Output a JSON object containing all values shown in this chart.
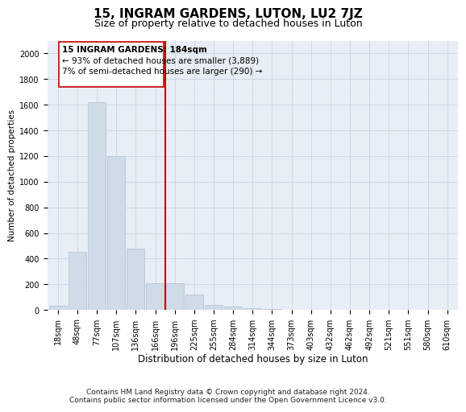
{
  "title": "15, INGRAM GARDENS, LUTON, LU2 7JZ",
  "subtitle": "Size of property relative to detached houses in Luton",
  "xlabel": "Distribution of detached houses by size in Luton",
  "ylabel": "Number of detached properties",
  "bar_color": "#cfdce8",
  "bar_edge_color": "#aabfd0",
  "categories": [
    "18sqm",
    "48sqm",
    "77sqm",
    "107sqm",
    "136sqm",
    "166sqm",
    "196sqm",
    "225sqm",
    "255sqm",
    "284sqm",
    "314sqm",
    "344sqm",
    "373sqm",
    "403sqm",
    "432sqm",
    "462sqm",
    "492sqm",
    "521sqm",
    "551sqm",
    "580sqm",
    "610sqm"
  ],
  "values": [
    30,
    450,
    1620,
    1200,
    480,
    210,
    210,
    120,
    40,
    25,
    15,
    5,
    0,
    0,
    0,
    0,
    0,
    0,
    0,
    0,
    0
  ],
  "vline_color": "#cc0000",
  "annotation_title": "15 INGRAM GARDENS: 184sqm",
  "annotation_line1": "← 93% of detached houses are smaller (3,889)",
  "annotation_line2": "7% of semi-detached houses are larger (290) →",
  "annotation_box_color": "#ffffff",
  "annotation_box_edge": "#cc0000",
  "ylim": [
    0,
    2100
  ],
  "yticks": [
    0,
    200,
    400,
    600,
    800,
    1000,
    1200,
    1400,
    1600,
    1800,
    2000
  ],
  "footnote1": "Contains HM Land Registry data © Crown copyright and database right 2024.",
  "footnote2": "Contains public sector information licensed under the Open Government Licence v3.0.",
  "bg_color": "#ffffff",
  "plot_bg_color": "#e8eef5",
  "grid_color": "#c8d4e0",
  "title_fontsize": 11,
  "subtitle_fontsize": 9,
  "xlabel_fontsize": 8.5,
  "ylabel_fontsize": 7.5,
  "tick_fontsize": 7,
  "annotation_fontsize": 7.5,
  "footnote_fontsize": 6.5
}
